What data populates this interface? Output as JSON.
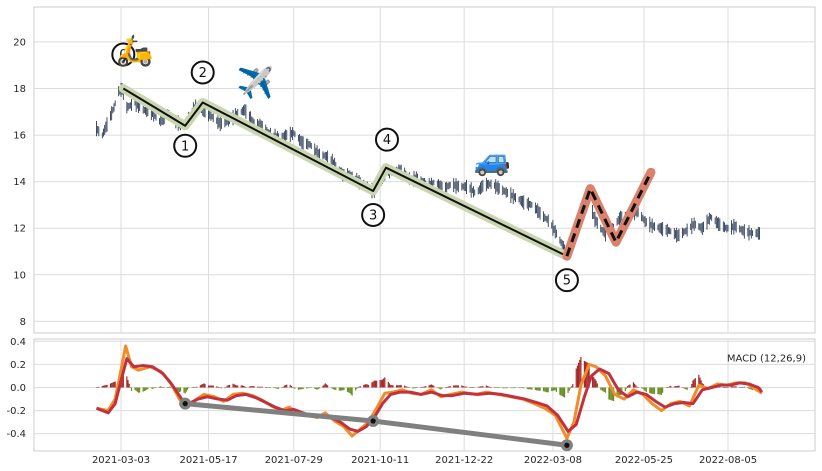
{
  "chart_data": [
    {
      "type": "ohlc",
      "panel": "price",
      "ylim": [
        7.5,
        21.5
      ],
      "yticks": [
        "8",
        "10",
        "12",
        "14",
        "16",
        "18",
        "20"
      ],
      "grid": true,
      "series_points": [
        [
          "2021-02-10",
          16.3
        ],
        [
          "2021-02-15",
          16.0
        ],
        [
          "2021-02-20",
          16.6
        ],
        [
          "2021-02-25",
          17.2
        ],
        [
          "2021-03-01",
          17.9
        ],
        [
          "2021-03-04",
          18.0
        ],
        [
          "2021-03-08",
          17.2
        ],
        [
          "2021-03-15",
          17.4
        ],
        [
          "2021-03-22",
          17.1
        ],
        [
          "2021-03-29",
          17.0
        ],
        [
          "2021-04-05",
          16.6
        ],
        [
          "2021-04-12",
          16.9
        ],
        [
          "2021-04-19",
          16.6
        ],
        [
          "2021-04-26",
          16.4
        ],
        [
          "2021-05-01",
          16.8
        ],
        [
          "2021-05-06",
          17.3
        ],
        [
          "2021-05-12",
          17.1
        ],
        [
          "2021-05-20",
          16.8
        ],
        [
          "2021-05-27",
          16.5
        ],
        [
          "2021-06-03",
          16.6
        ],
        [
          "2021-06-10",
          16.9
        ],
        [
          "2021-06-17",
          17.1
        ],
        [
          "2021-06-24",
          16.6
        ],
        [
          "2021-07-01",
          16.4
        ],
        [
          "2021-07-08",
          16.1
        ],
        [
          "2021-07-15",
          15.9
        ],
        [
          "2021-07-22",
          16.0
        ],
        [
          "2021-07-29",
          16.1
        ],
        [
          "2021-08-05",
          15.7
        ],
        [
          "2021-08-12",
          15.6
        ],
        [
          "2021-08-19",
          15.2
        ],
        [
          "2021-08-26",
          15.1
        ],
        [
          "2021-09-02",
          14.8
        ],
        [
          "2021-09-09",
          14.3
        ],
        [
          "2021-09-16",
          14.3
        ],
        [
          "2021-09-23",
          14.0
        ],
        [
          "2021-09-30",
          13.8
        ],
        [
          "2021-10-05",
          13.6
        ],
        [
          "2021-10-11",
          13.9
        ],
        [
          "2021-10-16",
          14.5
        ],
        [
          "2021-10-23",
          14.4
        ],
        [
          "2021-10-30",
          14.5
        ],
        [
          "2021-11-06",
          14.1
        ],
        [
          "2021-11-13",
          14.2
        ],
        [
          "2021-11-20",
          13.8
        ],
        [
          "2021-11-27",
          14.0
        ],
        [
          "2021-12-04",
          13.7
        ],
        [
          "2021-12-11",
          13.9
        ],
        [
          "2021-12-18",
          13.8
        ],
        [
          "2021-12-25",
          13.8
        ],
        [
          "2022-01-01",
          13.5
        ],
        [
          "2022-01-08",
          13.9
        ],
        [
          "2022-01-15",
          13.9
        ],
        [
          "2022-01-22",
          13.7
        ],
        [
          "2022-01-29",
          13.5
        ],
        [
          "2022-02-05",
          13.3
        ],
        [
          "2022-02-12",
          13.1
        ],
        [
          "2022-02-19",
          13.0
        ],
        [
          "2022-02-26",
          12.6
        ],
        [
          "2022-03-05",
          12.3
        ],
        [
          "2022-03-12",
          11.7
        ],
        [
          "2022-03-19",
          11.0
        ],
        [
          "2022-03-24",
          11.3
        ],
        [
          "2022-03-29",
          12.0
        ],
        [
          "2022-04-03",
          12.6
        ],
        [
          "2022-04-08",
          13.2
        ],
        [
          "2022-04-13",
          12.4
        ],
        [
          "2022-04-18",
          12.0
        ],
        [
          "2022-04-23",
          11.7
        ],
        [
          "2022-04-28",
          12.0
        ],
        [
          "2022-05-05",
          12.5
        ],
        [
          "2022-05-12",
          12.4
        ],
        [
          "2022-05-19",
          12.8
        ],
        [
          "2022-05-26",
          12.3
        ],
        [
          "2022-06-02",
          12.1
        ],
        [
          "2022-06-09",
          12.0
        ],
        [
          "2022-06-16",
          11.9
        ],
        [
          "2022-06-23",
          11.7
        ],
        [
          "2022-06-30",
          11.9
        ],
        [
          "2022-07-07",
          12.2
        ],
        [
          "2022-07-14",
          12.0
        ],
        [
          "2022-07-21",
          12.5
        ],
        [
          "2022-07-28",
          12.2
        ],
        [
          "2022-08-04",
          12.0
        ],
        [
          "2022-08-11",
          12.1
        ],
        [
          "2022-08-18",
          11.9
        ],
        [
          "2022-08-25",
          11.8
        ],
        [
          "2022-09-01",
          11.8
        ]
      ],
      "wave": [
        {
          "label": "0",
          "date": "2021-03-05",
          "value": 18.0
        },
        {
          "label": "1",
          "date": "2021-04-27",
          "value": 16.4
        },
        {
          "label": "2",
          "date": "2021-05-12",
          "value": 17.4
        },
        {
          "label": "3",
          "date": "2021-10-05",
          "value": 13.6
        },
        {
          "label": "4",
          "date": "2021-10-16",
          "value": 14.6
        },
        {
          "label": "5",
          "date": "2022-03-20",
          "value": 10.8
        }
      ],
      "projection": [
        {
          "date": "2022-03-20",
          "value": 10.8
        },
        {
          "date": "2022-04-09",
          "value": 13.7
        },
        {
          "date": "2022-05-01",
          "value": 11.4
        },
        {
          "date": "2022-05-31",
          "value": 14.4
        }
      ],
      "icons": [
        {
          "name": "scooter-icon",
          "glyph": "🛵",
          "date": "2021-03-15",
          "value": 19.2
        },
        {
          "name": "airplane-icon",
          "glyph": "✈️",
          "date": "2021-06-26",
          "value": 17.8
        },
        {
          "name": "car-icon",
          "glyph": "🚙",
          "date": "2022-01-15",
          "value": 14.5
        }
      ],
      "colors": {
        "bar": "#2b3a55",
        "wave_line": "#111111",
        "wave_halo": "#c9d6b0",
        "projection_halo": "#d9826d",
        "projection_dash": "#111111"
      }
    },
    {
      "type": "macd",
      "panel": "indicator",
      "legend": "MACD (12,26,9)",
      "ylim": [
        -0.55,
        0.42
      ],
      "yticks": [
        "-0.4",
        "-0.2",
        "0.0",
        "0.2",
        "0.4"
      ],
      "xticks": [
        "2021-03-03",
        "2021-05-17",
        "2021-07-29",
        "2021-10-11",
        "2021-12-22",
        "2022-03-08",
        "2022-05-25",
        "2022-08-05"
      ],
      "macd": [
        [
          "2021-02-10",
          -0.18
        ],
        [
          "2021-02-20",
          -0.2
        ],
        [
          "2021-02-26",
          -0.1
        ],
        [
          "2021-03-02",
          0.1
        ],
        [
          "2021-03-07",
          0.36
        ],
        [
          "2021-03-12",
          0.18
        ],
        [
          "2021-03-18",
          0.15
        ],
        [
          "2021-03-28",
          0.18
        ],
        [
          "2021-04-06",
          0.14
        ],
        [
          "2021-04-14",
          0.05
        ],
        [
          "2021-04-22",
          -0.1
        ],
        [
          "2021-04-27",
          -0.16
        ],
        [
          "2021-05-04",
          -0.12
        ],
        [
          "2021-05-13",
          -0.06
        ],
        [
          "2021-05-22",
          -0.08
        ],
        [
          "2021-05-30",
          -0.12
        ],
        [
          "2021-06-07",
          -0.06
        ],
        [
          "2021-06-15",
          -0.05
        ],
        [
          "2021-06-24",
          -0.07
        ],
        [
          "2021-07-02",
          -0.11
        ],
        [
          "2021-07-10",
          -0.16
        ],
        [
          "2021-07-18",
          -0.2
        ],
        [
          "2021-07-25",
          -0.17
        ],
        [
          "2021-08-02",
          -0.22
        ],
        [
          "2021-08-10",
          -0.24
        ],
        [
          "2021-08-18",
          -0.26
        ],
        [
          "2021-08-25",
          -0.22
        ],
        [
          "2021-09-02",
          -0.29
        ],
        [
          "2021-09-10",
          -0.34
        ],
        [
          "2021-09-17",
          -0.42
        ],
        [
          "2021-09-24",
          -0.36
        ],
        [
          "2021-10-01",
          -0.3
        ],
        [
          "2021-10-08",
          -0.18
        ],
        [
          "2021-10-15",
          -0.05
        ],
        [
          "2021-10-22",
          -0.04
        ],
        [
          "2021-10-30",
          -0.02
        ],
        [
          "2021-11-07",
          -0.05
        ],
        [
          "2021-11-15",
          -0.06
        ],
        [
          "2021-11-24",
          -0.02
        ],
        [
          "2021-12-02",
          -0.08
        ],
        [
          "2021-12-10",
          -0.06
        ],
        [
          "2021-12-20",
          -0.04
        ],
        [
          "2022-01-01",
          -0.06
        ],
        [
          "2022-01-10",
          -0.04
        ],
        [
          "2022-01-20",
          -0.06
        ],
        [
          "2022-01-31",
          -0.08
        ],
        [
          "2022-02-10",
          -0.1
        ],
        [
          "2022-02-20",
          -0.14
        ],
        [
          "2022-03-01",
          -0.18
        ],
        [
          "2022-03-10",
          -0.24
        ],
        [
          "2022-03-20",
          -0.44
        ],
        [
          "2022-03-26",
          -0.3
        ],
        [
          "2022-04-01",
          0.02
        ],
        [
          "2022-04-08",
          0.2
        ],
        [
          "2022-04-14",
          0.18
        ],
        [
          "2022-04-22",
          0.1
        ],
        [
          "2022-04-30",
          -0.06
        ],
        [
          "2022-05-08",
          -0.1
        ],
        [
          "2022-05-16",
          -0.02
        ],
        [
          "2022-05-24",
          -0.06
        ],
        [
          "2022-06-01",
          -0.14
        ],
        [
          "2022-06-09",
          -0.2
        ],
        [
          "2022-06-17",
          -0.14
        ],
        [
          "2022-06-25",
          -0.12
        ],
        [
          "2022-07-03",
          -0.16
        ],
        [
          "2022-07-11",
          0.02
        ],
        [
          "2022-07-19",
          -0.01
        ],
        [
          "2022-07-27",
          0.03
        ],
        [
          "2022-08-04",
          0.02
        ],
        [
          "2022-08-12",
          0.04
        ],
        [
          "2022-08-20",
          0.04
        ],
        [
          "2022-08-28",
          -0.01
        ],
        [
          "2022-09-03",
          -0.05
        ]
      ],
      "signal": [
        [
          "2021-02-10",
          -0.18
        ],
        [
          "2021-02-20",
          -0.22
        ],
        [
          "2021-02-26",
          -0.14
        ],
        [
          "2021-03-02",
          0.02
        ],
        [
          "2021-03-08",
          0.25
        ],
        [
          "2021-03-14",
          0.18
        ],
        [
          "2021-03-22",
          0.19
        ],
        [
          "2021-03-30",
          0.18
        ],
        [
          "2021-04-08",
          0.12
        ],
        [
          "2021-04-16",
          0.02
        ],
        [
          "2021-04-24",
          -0.1
        ],
        [
          "2021-04-30",
          -0.14
        ],
        [
          "2021-05-08",
          -0.1
        ],
        [
          "2021-05-16",
          -0.08
        ],
        [
          "2021-05-25",
          -0.1
        ],
        [
          "2021-06-02",
          -0.11
        ],
        [
          "2021-06-10",
          -0.07
        ],
        [
          "2021-06-18",
          -0.06
        ],
        [
          "2021-06-27",
          -0.09
        ],
        [
          "2021-07-05",
          -0.13
        ],
        [
          "2021-07-13",
          -0.17
        ],
        [
          "2021-07-21",
          -0.2
        ],
        [
          "2021-07-29",
          -0.19
        ],
        [
          "2021-08-06",
          -0.22
        ],
        [
          "2021-08-14",
          -0.25
        ],
        [
          "2021-08-22",
          -0.24
        ],
        [
          "2021-08-30",
          -0.26
        ],
        [
          "2021-09-07",
          -0.3
        ],
        [
          "2021-09-15",
          -0.36
        ],
        [
          "2021-09-22",
          -0.38
        ],
        [
          "2021-09-29",
          -0.34
        ],
        [
          "2021-10-06",
          -0.26
        ],
        [
          "2021-10-13",
          -0.14
        ],
        [
          "2021-10-20",
          -0.06
        ],
        [
          "2021-10-28",
          -0.04
        ],
        [
          "2021-11-06",
          -0.04
        ],
        [
          "2021-11-15",
          -0.06
        ],
        [
          "2021-11-24",
          -0.04
        ],
        [
          "2021-12-03",
          -0.07
        ],
        [
          "2021-12-12",
          -0.07
        ],
        [
          "2021-12-22",
          -0.05
        ],
        [
          "2022-01-03",
          -0.06
        ],
        [
          "2022-01-13",
          -0.05
        ],
        [
          "2022-01-23",
          -0.06
        ],
        [
          "2022-02-02",
          -0.08
        ],
        [
          "2022-02-12",
          -0.1
        ],
        [
          "2022-02-22",
          -0.13
        ],
        [
          "2022-03-03",
          -0.16
        ],
        [
          "2022-03-12",
          -0.24
        ],
        [
          "2022-03-21",
          -0.38
        ],
        [
          "2022-03-28",
          -0.32
        ],
        [
          "2022-04-04",
          -0.08
        ],
        [
          "2022-04-10",
          0.1
        ],
        [
          "2022-04-17",
          0.16
        ],
        [
          "2022-04-25",
          0.12
        ],
        [
          "2022-05-03",
          -0.02
        ],
        [
          "2022-05-11",
          -0.08
        ],
        [
          "2022-05-19",
          -0.04
        ],
        [
          "2022-05-27",
          -0.06
        ],
        [
          "2022-06-04",
          -0.12
        ],
        [
          "2022-06-12",
          -0.17
        ],
        [
          "2022-06-20",
          -0.14
        ],
        [
          "2022-06-28",
          -0.13
        ],
        [
          "2022-07-06",
          -0.14
        ],
        [
          "2022-07-14",
          -0.02
        ],
        [
          "2022-07-22",
          0.0
        ],
        [
          "2022-07-30",
          0.02
        ],
        [
          "2022-08-07",
          0.02
        ],
        [
          "2022-08-15",
          0.04
        ],
        [
          "2022-08-23",
          0.03
        ],
        [
          "2022-08-31",
          0.0
        ],
        [
          "2022-09-03",
          -0.04
        ]
      ],
      "divergence": [
        {
          "date": "2021-04-27",
          "value": -0.14
        },
        {
          "date": "2021-10-05",
          "value": -0.29
        },
        {
          "date": "2022-03-20",
          "value": -0.5
        }
      ],
      "colors": {
        "macd": "#f28c28",
        "signal": "#c0323d",
        "hist_pos": "#a52a2a",
        "hist_neg": "#6b8e23",
        "divergence": "#808080",
        "divergence_dot": "#111111"
      }
    }
  ]
}
